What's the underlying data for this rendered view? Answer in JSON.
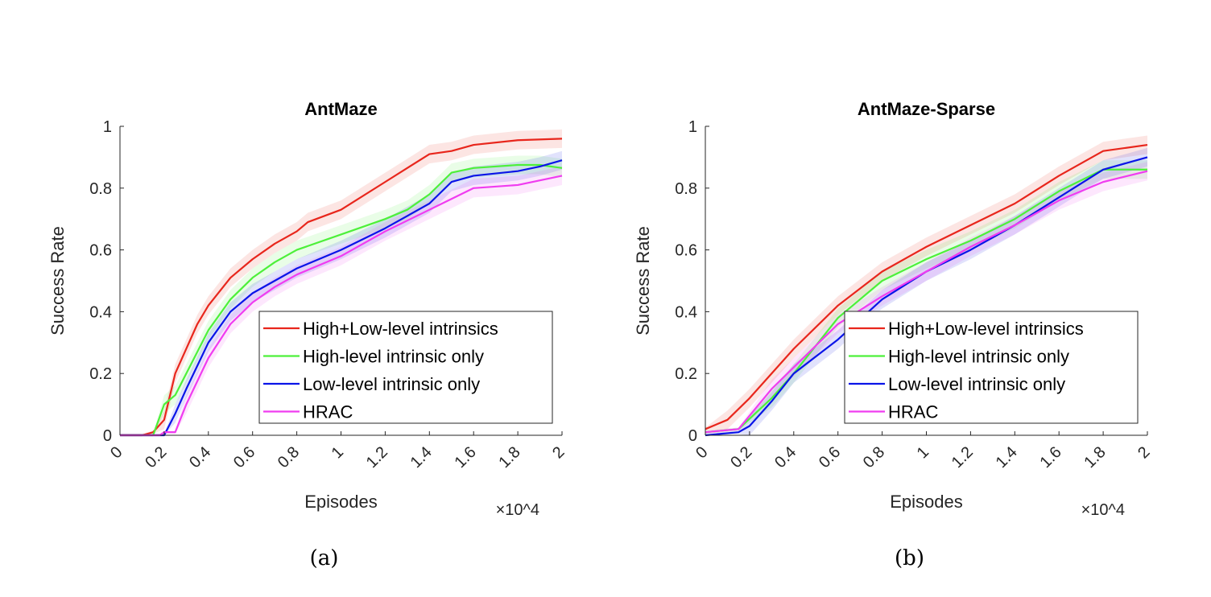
{
  "chart_data": [
    {
      "type": "line",
      "title": "AntMaze",
      "xlabel": "Episodes",
      "ylabel": "Success Rate",
      "x_multiplier": "×10^4",
      "xlim": [
        0,
        2
      ],
      "ylim": [
        0,
        1
      ],
      "xticks": [
        "0",
        "0.2",
        "0.4",
        "0.6",
        "0.8",
        "1",
        "1.2",
        "1.4",
        "1.6",
        "1.8",
        "2"
      ],
      "yticks": [
        "0",
        "0.2",
        "0.4",
        "0.6",
        "0.8",
        "1"
      ],
      "grid": false,
      "legend": "bottom-right",
      "caption": "(a)",
      "series": [
        {
          "name": "High+Low-level intrinsics",
          "color": "#e8261c",
          "x": [
            0,
            0.1,
            0.15,
            0.2,
            0.25,
            0.3,
            0.35,
            0.4,
            0.5,
            0.6,
            0.7,
            0.8,
            0.85,
            1.0,
            1.2,
            1.4,
            1.5,
            1.6,
            1.8,
            2.0
          ],
          "y": [
            0,
            0,
            0.01,
            0.05,
            0.2,
            0.28,
            0.36,
            0.42,
            0.51,
            0.57,
            0.62,
            0.66,
            0.69,
            0.73,
            0.82,
            0.91,
            0.92,
            0.94,
            0.955,
            0.96
          ]
        },
        {
          "name": "High-level intrinsic only",
          "color": "#4df03a",
          "x": [
            0,
            0.15,
            0.2,
            0.25,
            0.3,
            0.4,
            0.5,
            0.6,
            0.7,
            0.8,
            1.0,
            1.2,
            1.3,
            1.4,
            1.5,
            1.6,
            1.8,
            1.9,
            2.0
          ],
          "y": [
            0,
            0,
            0.1,
            0.13,
            0.2,
            0.34,
            0.44,
            0.51,
            0.56,
            0.6,
            0.65,
            0.7,
            0.73,
            0.78,
            0.85,
            0.865,
            0.875,
            0.875,
            0.865
          ]
        },
        {
          "name": "Low-level intrinsic only",
          "color": "#0a14e8",
          "x": [
            0,
            0.2,
            0.25,
            0.3,
            0.4,
            0.5,
            0.6,
            0.7,
            0.8,
            1.0,
            1.2,
            1.4,
            1.5,
            1.6,
            1.8,
            1.9,
            2.0
          ],
          "y": [
            0,
            0,
            0.07,
            0.15,
            0.3,
            0.4,
            0.46,
            0.5,
            0.54,
            0.6,
            0.67,
            0.75,
            0.82,
            0.84,
            0.855,
            0.87,
            0.89
          ]
        },
        {
          "name": "HRAC",
          "color": "#f03cf0",
          "x": [
            0,
            0.18,
            0.2,
            0.25,
            0.3,
            0.4,
            0.5,
            0.6,
            0.7,
            0.8,
            1.0,
            1.2,
            1.4,
            1.6,
            1.8,
            2.0
          ],
          "y": [
            0,
            0,
            0.01,
            0.01,
            0.1,
            0.25,
            0.36,
            0.43,
            0.48,
            0.52,
            0.58,
            0.66,
            0.73,
            0.8,
            0.81,
            0.84
          ]
        }
      ]
    },
    {
      "type": "line",
      "title": "AntMaze-Sparse",
      "xlabel": "Episodes",
      "ylabel": "Success Rate",
      "x_multiplier": "×10^4",
      "xlim": [
        0,
        2
      ],
      "ylim": [
        0,
        1
      ],
      "xticks": [
        "0",
        "0.2",
        "0.4",
        "0.6",
        "0.8",
        "1",
        "1.2",
        "1.4",
        "1.6",
        "1.8",
        "2"
      ],
      "yticks": [
        "0",
        "0.2",
        "0.4",
        "0.6",
        "0.8",
        "1"
      ],
      "grid": false,
      "legend": "bottom-right",
      "caption": "(b)",
      "series": [
        {
          "name": "High+Low-level intrinsics",
          "color": "#e8261c",
          "x": [
            0,
            0.1,
            0.2,
            0.4,
            0.6,
            0.8,
            1.0,
            1.2,
            1.4,
            1.6,
            1.8,
            2.0
          ],
          "y": [
            0.02,
            0.05,
            0.12,
            0.28,
            0.42,
            0.53,
            0.61,
            0.68,
            0.75,
            0.84,
            0.92,
            0.94
          ]
        },
        {
          "name": "High-level intrinsic only",
          "color": "#4df03a",
          "x": [
            0,
            0.15,
            0.3,
            0.4,
            0.6,
            0.8,
            1.0,
            1.2,
            1.4,
            1.6,
            1.8,
            2.0
          ],
          "y": [
            0.01,
            0.02,
            0.12,
            0.2,
            0.38,
            0.5,
            0.57,
            0.63,
            0.7,
            0.79,
            0.86,
            0.86
          ]
        },
        {
          "name": "Low-level intrinsic only",
          "color": "#0a14e8",
          "x": [
            0,
            0.15,
            0.2,
            0.3,
            0.4,
            0.6,
            0.8,
            1.0,
            1.2,
            1.4,
            1.6,
            1.8,
            2.0
          ],
          "y": [
            0,
            0.01,
            0.03,
            0.11,
            0.2,
            0.31,
            0.44,
            0.53,
            0.6,
            0.68,
            0.77,
            0.86,
            0.9
          ]
        },
        {
          "name": "HRAC",
          "color": "#f03cf0",
          "x": [
            0,
            0.15,
            0.3,
            0.4,
            0.6,
            0.8,
            1.0,
            1.2,
            1.4,
            1.6,
            1.8,
            2.0
          ],
          "y": [
            0.01,
            0.02,
            0.15,
            0.22,
            0.36,
            0.45,
            0.53,
            0.61,
            0.68,
            0.76,
            0.82,
            0.855
          ]
        }
      ]
    }
  ]
}
